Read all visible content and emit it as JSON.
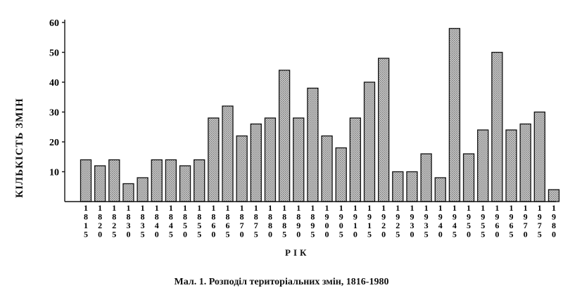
{
  "chart_data": {
    "type": "bar",
    "ylabel": "КІЛЬКІСТЬ ЗМІН",
    "xlabel": "РІК",
    "caption": "Мал. 1. Розподіл територіальних змін, 1816-1980",
    "ylim": [
      0,
      60
    ],
    "yticks": [
      10,
      20,
      30,
      40,
      50,
      60
    ],
    "grid": false,
    "bar_color": "#b5b5b5",
    "categories": [
      "1815",
      "1820",
      "1825",
      "1830",
      "1835",
      "1840",
      "1845",
      "1850",
      "1855",
      "1860",
      "1865",
      "1870",
      "1875",
      "1880",
      "1885",
      "1890",
      "1895",
      "1900",
      "1905",
      "1910",
      "1915",
      "1920",
      "1925",
      "1930",
      "1935",
      "1940",
      "1945",
      "1950",
      "1955",
      "1960",
      "1965",
      "1970",
      "1975",
      "1980"
    ],
    "values": [
      14,
      12,
      14,
      6,
      8,
      14,
      14,
      12,
      14,
      28,
      32,
      22,
      26,
      28,
      44,
      28,
      38,
      22,
      18,
      28,
      40,
      48,
      10,
      10,
      16,
      8,
      58,
      16,
      24,
      50,
      24,
      26,
      30,
      4
    ]
  }
}
